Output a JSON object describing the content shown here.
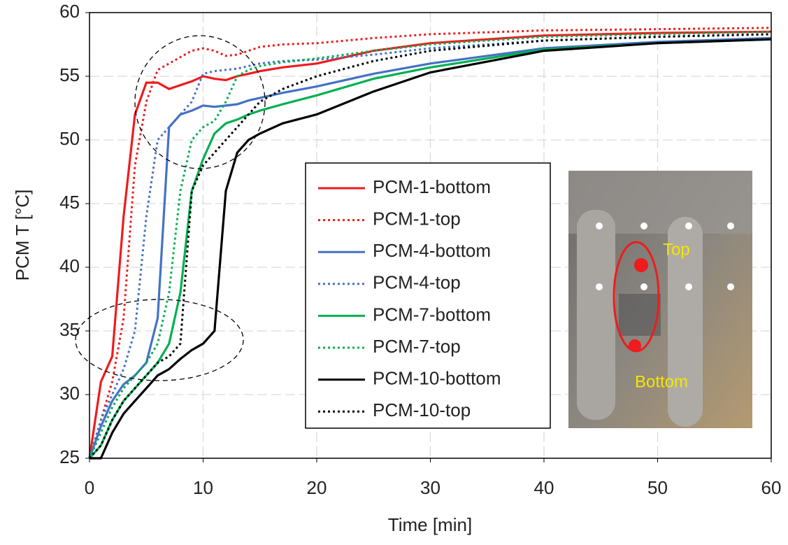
{
  "chart_data": {
    "type": "line",
    "xlabel": "Time [min]",
    "ylabel": "PCM T [°C]",
    "x": [
      0,
      1,
      2,
      3,
      4,
      5,
      6,
      7,
      8,
      9,
      10,
      11,
      12,
      13,
      14,
      15,
      17,
      20,
      25,
      30,
      40,
      50,
      60
    ],
    "series": [
      {
        "name": "PCM-1-bottom",
        "color": "#ee1c1c",
        "style": "solid",
        "values": [
          25,
          31,
          33,
          44,
          52,
          54.5,
          54.5,
          54,
          54.3,
          54.6,
          55,
          54.8,
          54.7,
          55,
          55.2,
          55.4,
          55.7,
          56,
          57,
          57.6,
          58.2,
          58.4,
          58.5
        ]
      },
      {
        "name": "PCM-1-top",
        "color": "#ee1c1c",
        "style": "dotted",
        "values": [
          25,
          28,
          31,
          36,
          48,
          53,
          55.5,
          56,
          56.5,
          57,
          57.2,
          57,
          56.6,
          56.7,
          57,
          57.3,
          57.5,
          57.6,
          58,
          58.3,
          58.6,
          58.7,
          58.8
        ]
      },
      {
        "name": "PCM-4-bottom",
        "color": "#4472c4",
        "style": "solid",
        "values": [
          25,
          27.5,
          29.5,
          30.8,
          31.5,
          32.5,
          36,
          51,
          52,
          52.3,
          52.7,
          52.6,
          52.7,
          52.8,
          53.1,
          53.3,
          53.7,
          54.2,
          55.2,
          56,
          57.2,
          57.7,
          58
        ]
      },
      {
        "name": "PCM-4-top",
        "color": "#4472c4",
        "style": "dotted",
        "values": [
          25,
          28,
          30,
          32,
          35,
          44,
          50,
          51,
          52,
          53,
          55.2,
          55.4,
          55.5,
          55.6,
          55.8,
          56,
          56.2,
          56.3,
          56.7,
          57.2,
          57.8,
          58.1,
          58.3
        ]
      },
      {
        "name": "PCM-7-bottom",
        "color": "#00b050",
        "style": "solid",
        "values": [
          25,
          26,
          28,
          29.5,
          30.5,
          31.5,
          32.5,
          34,
          38,
          46,
          48.5,
          50.5,
          51.3,
          51.6,
          52,
          52.3,
          52.8,
          53.5,
          54.8,
          55.7,
          57.1,
          57.6,
          57.9
        ]
      },
      {
        "name": "PCM-7-top",
        "color": "#00b050",
        "style": "dotted",
        "values": [
          25,
          27,
          29,
          30.5,
          31.5,
          32.5,
          34,
          38,
          46,
          50,
          51,
          51.5,
          53,
          55,
          55.5,
          55.8,
          56.1,
          56.4,
          57,
          57.5,
          58.1,
          58.3,
          58.5
        ]
      },
      {
        "name": "PCM-10-bottom",
        "color": "#000000",
        "style": "solid",
        "values": [
          25,
          25,
          27,
          28.5,
          29.5,
          30.5,
          31.5,
          32,
          32.8,
          33.5,
          34,
          35,
          46,
          49,
          50,
          50.5,
          51.3,
          52,
          53.8,
          55.3,
          57,
          57.6,
          57.9
        ]
      },
      {
        "name": "PCM-10-top",
        "color": "#000000",
        "style": "dotted",
        "values": [
          25,
          26,
          28,
          29.5,
          30.5,
          31.5,
          32.5,
          33,
          34,
          46,
          48,
          49,
          50,
          51,
          52,
          53,
          54,
          55,
          56.2,
          57,
          57.8,
          58.1,
          58.3
        ]
      }
    ],
    "xlim": [
      0,
      60
    ],
    "xticks": [
      0,
      10,
      20,
      30,
      40,
      50,
      60
    ],
    "ylim": [
      25,
      60
    ],
    "yticks": [
      25,
      30,
      35,
      40,
      45,
      50,
      55,
      60
    ],
    "grid": true,
    "annotations": [
      "Top",
      "Bottom"
    ]
  }
}
